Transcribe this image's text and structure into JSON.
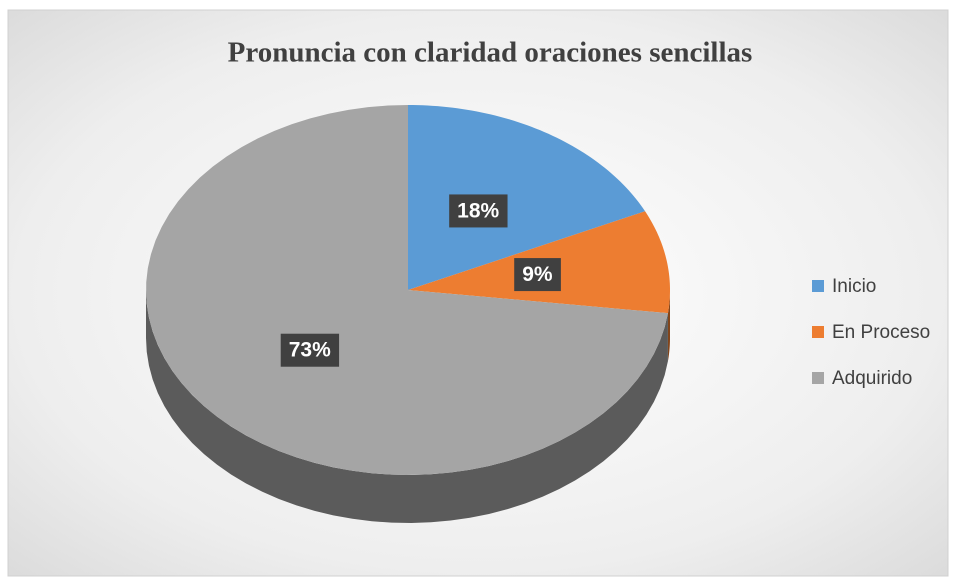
{
  "chart_data": {
    "type": "pie",
    "title": "Pronuncia con claridad oraciones sencillas",
    "categories": [
      "Inicio",
      "En Proceso",
      "Adquirido"
    ],
    "values": [
      18,
      9,
      73
    ],
    "value_labels": [
      "18%",
      "9%",
      "73%"
    ],
    "colors": [
      "#5b9bd5",
      "#ed7d31",
      "#a5a5a5"
    ],
    "legend": "right"
  }
}
